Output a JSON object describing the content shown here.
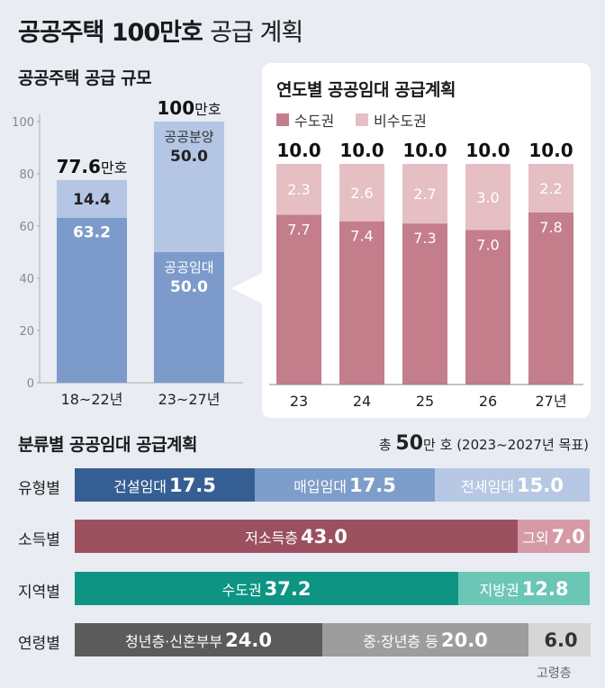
{
  "title_bold": "공공주택 100만호",
  "title_light": "공급 계획",
  "left_chart": {
    "title": "공공주택 공급 규모",
    "y_ticks": [
      "100",
      "80",
      "60",
      "40",
      "20",
      "0"
    ],
    "bars": [
      {
        "category": "18~22년",
        "total_num": "77.6",
        "total_unit": "만호",
        "bottom": {
          "label": "",
          "value": 63.2,
          "text": "63.2"
        },
        "top": {
          "label": "",
          "value": 14.4,
          "text": "14.4"
        }
      },
      {
        "category": "23~27년",
        "total_num": "100",
        "total_unit": "만호",
        "bottom": {
          "label": "공공임대",
          "value": 50.0,
          "text": "50.0"
        },
        "top": {
          "label": "공공분양",
          "value": 50.0,
          "text": "50.0"
        }
      }
    ]
  },
  "right_chart": {
    "title": "연도별 공공임대 공급계획",
    "legend": [
      {
        "name": "수도권",
        "color": "#c47d8b"
      },
      {
        "name": "비수도권",
        "color": "#e5bfc4"
      }
    ],
    "years": [
      "23",
      "24",
      "25",
      "26",
      "27년"
    ],
    "capital": [
      7.7,
      7.4,
      7.3,
      7.0,
      7.8
    ],
    "capital_text": [
      "7.7",
      "7.4",
      "7.3",
      "7.0",
      "7.8"
    ],
    "non_capital": [
      2.3,
      2.6,
      2.7,
      3.0,
      2.2
    ],
    "non_capital_text": [
      "2.3",
      "2.6",
      "2.7",
      "3.0",
      "2.2"
    ],
    "totals": [
      "10.0",
      "10.0",
      "10.0",
      "10.0",
      "10.0"
    ]
  },
  "bottom_chart": {
    "title": "분류별 공공임대 공급계획",
    "total_prefix": "총",
    "total_value": "50",
    "total_unit": "만 호",
    "total_period": "(2023~2027년 목표)",
    "rows": [
      {
        "label": "유형별",
        "segments": [
          {
            "name": "건설임대",
            "value": 17.5,
            "text": "17.5",
            "color": "#355f93",
            "text_color": "#ffffff"
          },
          {
            "name": "매입임대",
            "value": 17.5,
            "text": "17.5",
            "color": "#7d9dca",
            "text_color": "#ffffff"
          },
          {
            "name": "전세임대",
            "value": 15.0,
            "text": "15.0",
            "color": "#b6c8e4",
            "text_color": "#ffffff"
          }
        ]
      },
      {
        "label": "소득별",
        "segments": [
          {
            "name": "저소득층",
            "value": 43.0,
            "text": "43.0",
            "color": "#9b5060",
            "text_color": "#ffffff"
          },
          {
            "name": "그외",
            "value": 7.0,
            "text": "7.0",
            "color": "#d59aa6",
            "text_color": "#ffffff"
          }
        ]
      },
      {
        "label": "지역별",
        "segments": [
          {
            "name": "수도권",
            "value": 37.2,
            "text": "37.2",
            "color": "#0e9483",
            "text_color": "#ffffff"
          },
          {
            "name": "지방권",
            "value": 12.8,
            "text": "12.8",
            "color": "#6cc6b6",
            "text_color": "#ffffff"
          }
        ]
      },
      {
        "label": "연령별",
        "segments": [
          {
            "name": "청년층·신혼부부",
            "value": 24.0,
            "text": "24.0",
            "color": "#5b5b5b",
            "text_color": "#ffffff"
          },
          {
            "name": "중·장년층 등",
            "value": 20.0,
            "text": "20.0",
            "color": "#9d9d9d",
            "text_color": "#ffffff"
          },
          {
            "name": "",
            "value": 6.0,
            "text": "6.0",
            "color": "#d6d6d6",
            "text_color": "#333333"
          }
        ]
      }
    ],
    "below_note": "고령층"
  },
  "chart_data": [
    {
      "type": "bar",
      "stacked": true,
      "title": "공공주택 공급 규모",
      "categories": [
        "18~22년",
        "23~27년"
      ],
      "series": [
        {
          "name": "공공임대",
          "values": [
            63.2,
            50.0
          ]
        },
        {
          "name": "공공분양",
          "values": [
            14.4,
            50.0
          ]
        }
      ],
      "totals": [
        77.6,
        100
      ],
      "ylim": [
        0,
        100
      ],
      "grid": false
    },
    {
      "type": "bar",
      "stacked": true,
      "title": "연도별 공공임대 공급계획",
      "categories": [
        "23",
        "24",
        "25",
        "26",
        "27년"
      ],
      "series": [
        {
          "name": "수도권",
          "values": [
            7.7,
            7.4,
            7.3,
            7.0,
            7.8
          ]
        },
        {
          "name": "비수도권",
          "values": [
            2.3,
            2.6,
            2.7,
            3.0,
            2.2
          ]
        }
      ],
      "totals": [
        10.0,
        10.0,
        10.0,
        10.0,
        10.0
      ],
      "legend": "top-left"
    },
    {
      "type": "bar",
      "orientation": "horizontal",
      "stacked": true,
      "title": "분류별 공공임대 공급계획",
      "categories": [
        "유형별",
        "소득별",
        "지역별",
        "연령별"
      ],
      "segments": [
        [
          {
            "name": "건설임대",
            "value": 17.5
          },
          {
            "name": "매입임대",
            "value": 17.5
          },
          {
            "name": "전세임대",
            "value": 15.0
          }
        ],
        [
          {
            "name": "저소득층",
            "value": 43.0
          },
          {
            "name": "그외",
            "value": 7.0
          }
        ],
        [
          {
            "name": "수도권",
            "value": 37.2
          },
          {
            "name": "지방권",
            "value": 12.8
          }
        ],
        [
          {
            "name": "청년층·신혼부부",
            "value": 24.0
          },
          {
            "name": "중·장년층 등",
            "value": 20.0
          },
          {
            "name": "고령층",
            "value": 6.0
          }
        ]
      ],
      "total": 50
    }
  ]
}
